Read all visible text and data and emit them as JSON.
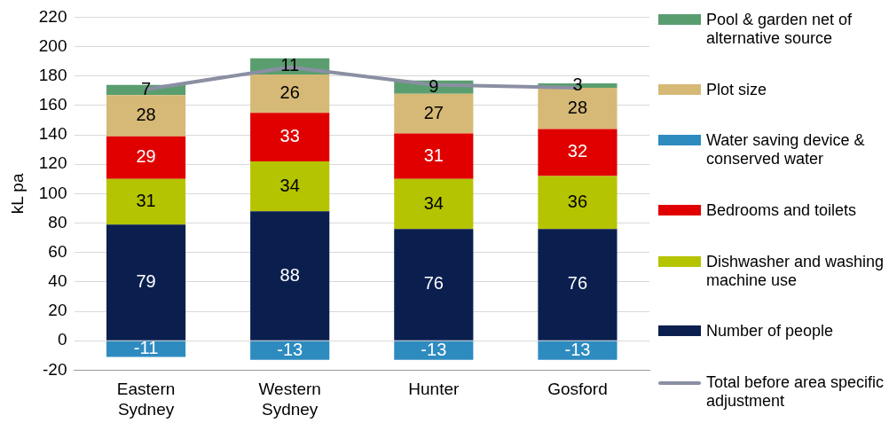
{
  "chart_data": {
    "type": "bar",
    "stacked": true,
    "ylabel": "kL pa",
    "categories": [
      "Eastern Sydney",
      "Western Sydney",
      "Hunter",
      "Gosford"
    ],
    "ylim": [
      -20,
      220
    ],
    "yticks": [
      -20,
      0,
      20,
      40,
      60,
      80,
      100,
      120,
      140,
      160,
      180,
      200,
      220
    ],
    "grid": "y",
    "legend": "right",
    "series": [
      {
        "name": "Number of people",
        "color": "#0b1f4f",
        "values": [
          79,
          88,
          76,
          76
        ],
        "value_labels": [
          "79",
          "88",
          "76",
          "76"
        ]
      },
      {
        "name": "Dishwasher and washing machine use",
        "color": "#b5c400",
        "values": [
          31,
          34,
          34,
          36
        ],
        "value_labels": [
          "31",
          "34",
          "34",
          "36"
        ]
      },
      {
        "name": "Bedrooms and toilets",
        "color": "#e00000",
        "values": [
          29,
          33,
          31,
          32
        ],
        "value_labels": [
          "29",
          "33",
          "31",
          "32"
        ]
      },
      {
        "name": "Water saving device & conserved water",
        "color": "#2e8bc0",
        "values": [
          -11,
          -13,
          -13,
          -13
        ],
        "value_labels": [
          "-11",
          "-13",
          "-13",
          "-13"
        ]
      },
      {
        "name": "Plot size",
        "color": "#d6b976",
        "values": [
          28,
          26,
          27,
          28
        ],
        "value_labels": [
          "28",
          "26",
          "27",
          "28"
        ]
      },
      {
        "name": "Pool & garden net of alternative source",
        "color": "#5a9e6f",
        "values": [
          7,
          11,
          9,
          3
        ],
        "value_labels": [
          "7",
          "11",
          "9",
          "3"
        ]
      },
      {
        "name": "Total before area specific adjustment",
        "type": "line",
        "color": "#8a8fa3",
        "values": [
          171,
          186,
          174,
          172
        ],
        "marker": "none"
      }
    ]
  }
}
